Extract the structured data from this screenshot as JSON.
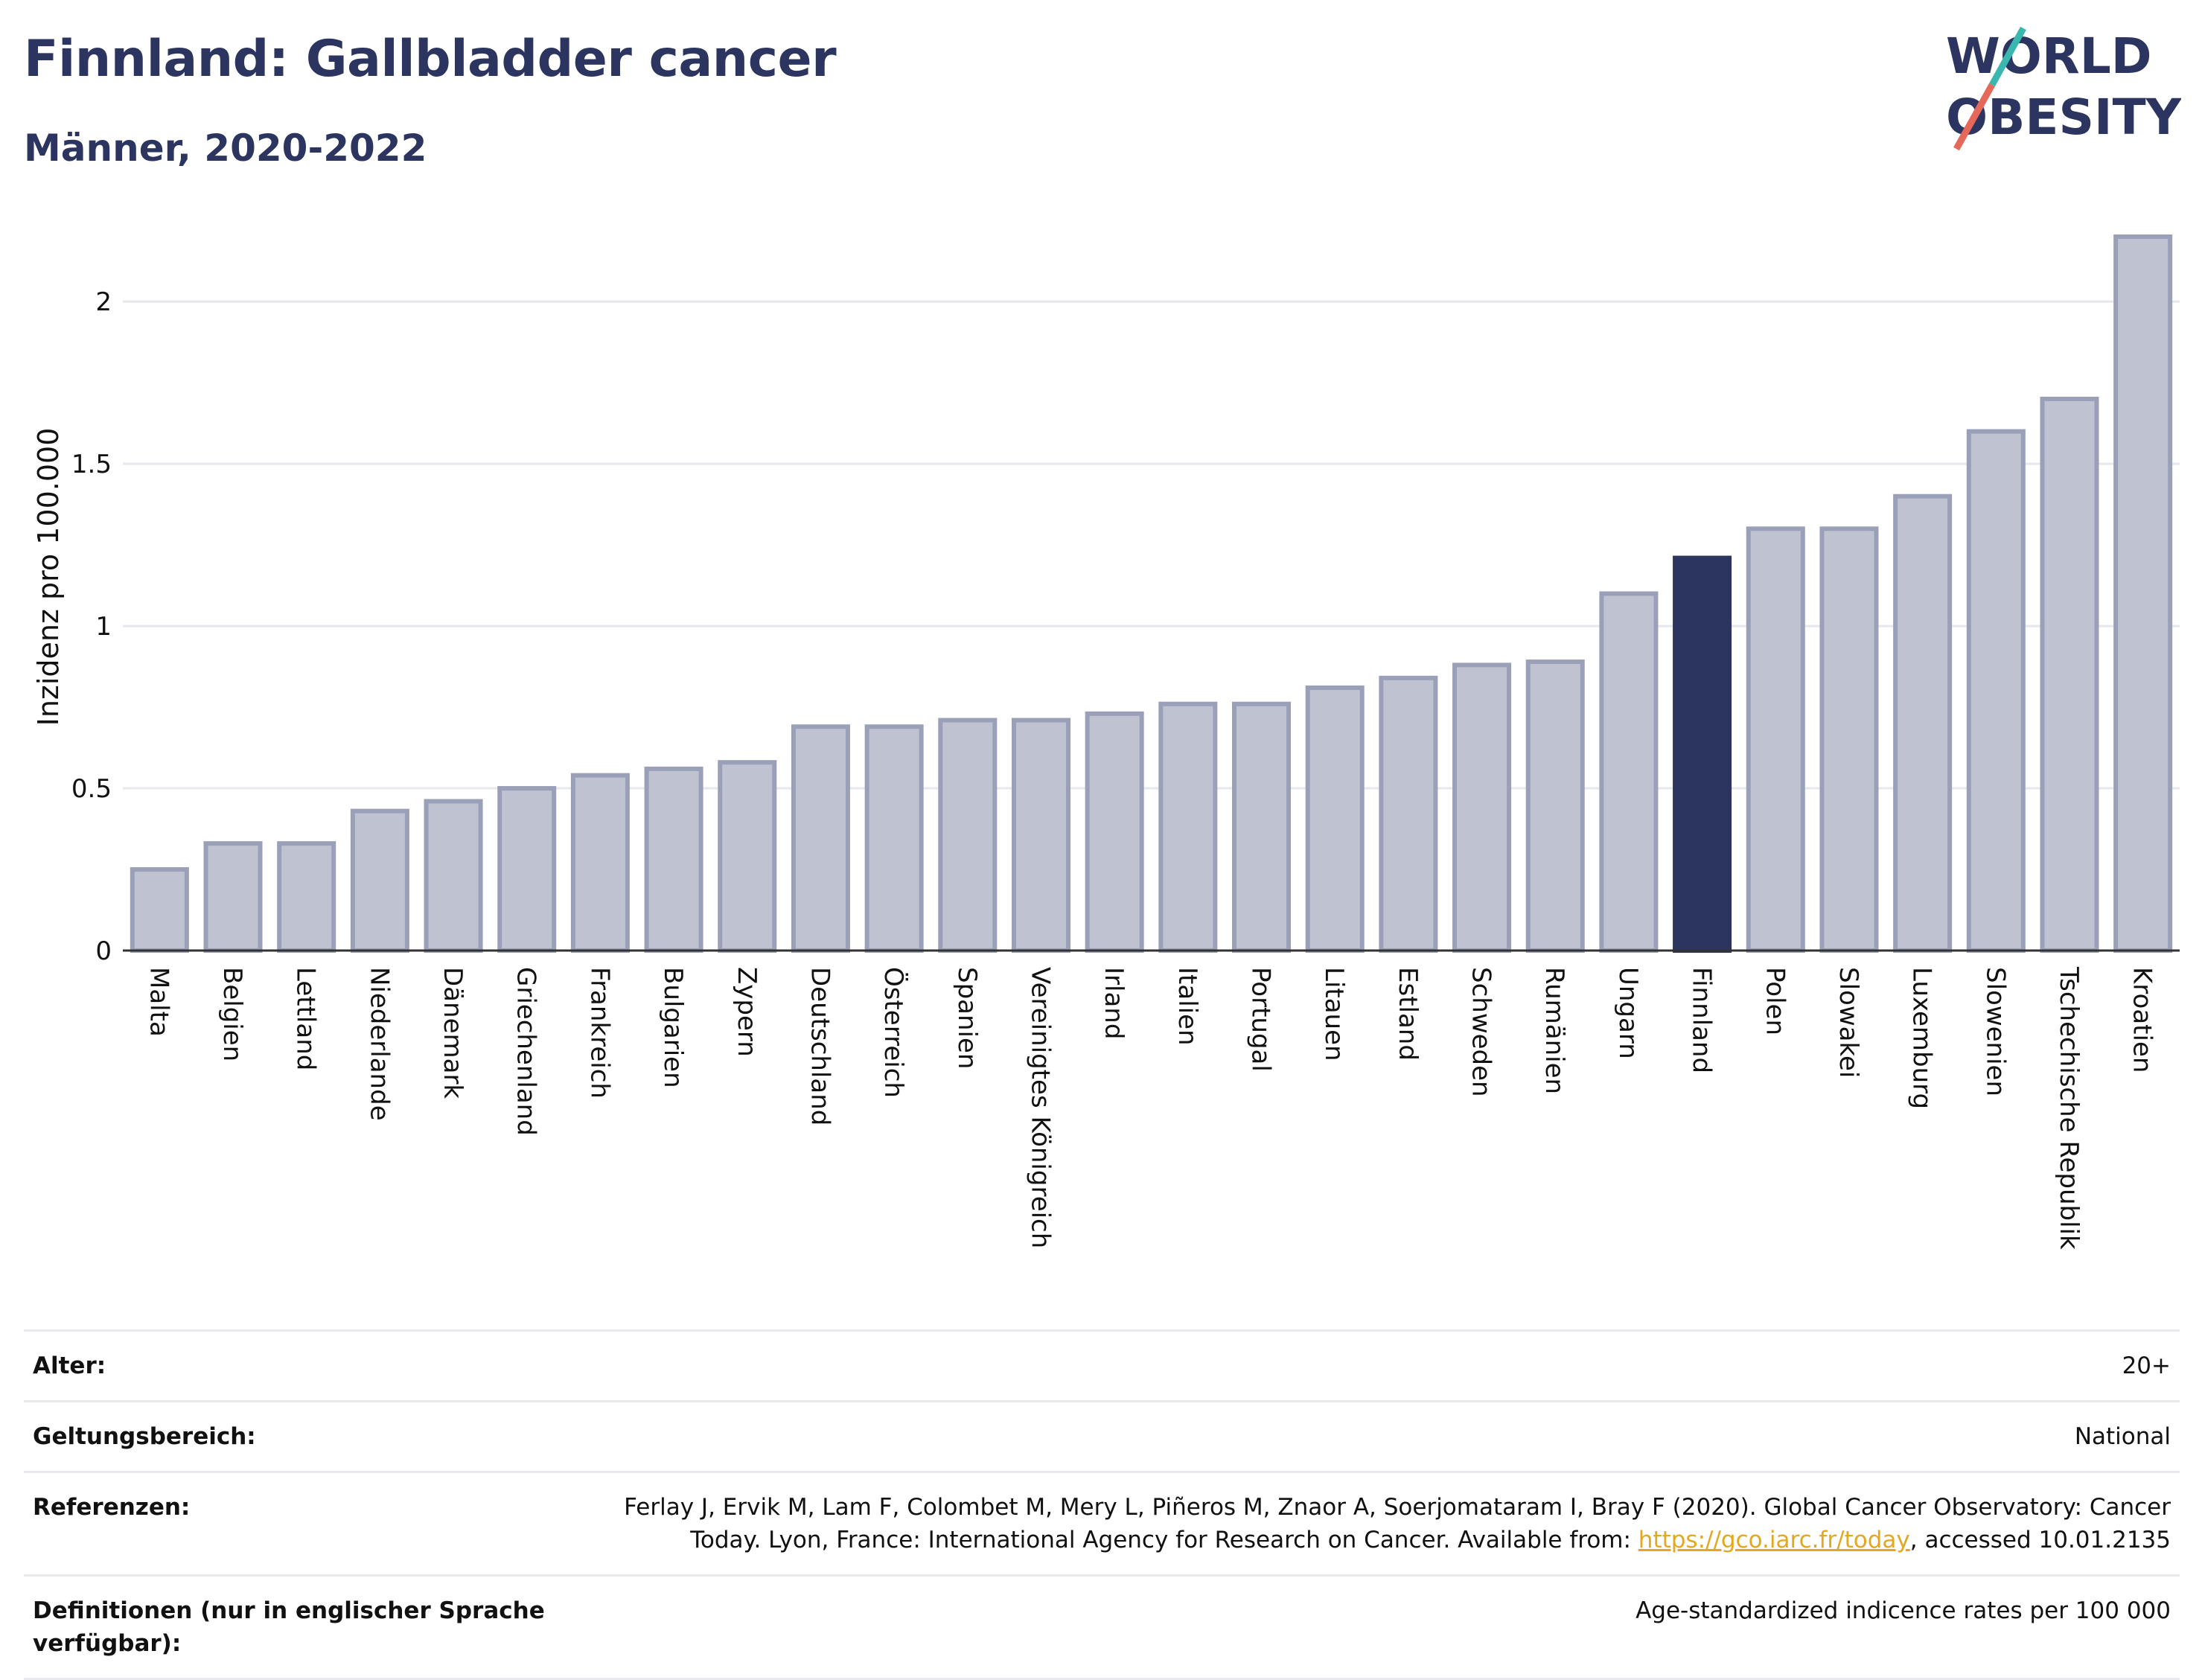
{
  "header": {
    "title": "Finnland: Gallbladder cancer",
    "subtitle": "Männer, 2020-2022"
  },
  "logo": {
    "line1": "WORLD",
    "line2": "OBESITY"
  },
  "colors": {
    "bar": "#bfc3d1",
    "bar_border": "#9aa0b8",
    "highlight": "#2b355f",
    "accent_line": "#e5685b",
    "accent_teal": "#3ab8b0"
  },
  "chart_data": {
    "type": "bar",
    "ylabel": "Inzidenz pro 100.000",
    "xlabel": "",
    "ylim": [
      0,
      2.2
    ],
    "yticks": [
      0,
      0.5,
      1,
      1.5,
      2
    ],
    "ytick_labels": [
      "0",
      "0.5",
      "1",
      "1.5",
      "2"
    ],
    "grid": true,
    "highlight": "Finnland",
    "categories": [
      "Malta",
      "Belgien",
      "Lettland",
      "Niederlande",
      "Dänemark",
      "Griechenland",
      "Frankreich",
      "Bulgarien",
      "Zypern",
      "Deutschland",
      "Österreich",
      "Spanien",
      "Vereinigtes Königreich",
      "Irland",
      "Italien",
      "Portugal",
      "Litauen",
      "Estland",
      "Schweden",
      "Rumänien",
      "Ungarn",
      "Finnland",
      "Polen",
      "Slowakei",
      "Luxemburg",
      "Slowenien",
      "Tschechische Republik",
      "Kroatien"
    ],
    "values": [
      0.25,
      0.33,
      0.33,
      0.43,
      0.46,
      0.5,
      0.54,
      0.56,
      0.58,
      0.69,
      0.69,
      0.71,
      0.71,
      0.73,
      0.76,
      0.76,
      0.81,
      0.84,
      0.88,
      0.89,
      1.1,
      1.21,
      1.3,
      1.3,
      1.4,
      1.6,
      1.7,
      2.2
    ]
  },
  "meta": {
    "age_label": "Alter:",
    "age_value": "20+",
    "scope_label": "Geltungsbereich:",
    "scope_value": "National",
    "ref_label": "Referenzen:",
    "ref_text_1": "Ferlay J, Ervik M, Lam F, Colombet M, Mery L, Piñeros M, Znaor A, Soerjomataram I, Bray F (2020). Global Cancer Observatory: Cancer Today. Lyon, France: International Agency for Research on Cancer. Available from: ",
    "ref_link": "https://gco.iarc.fr/today",
    "ref_text_2": ", accessed 10.01.2135",
    "def_label": "Definitionen (nur in englischer Sprache verfügbar):",
    "def_value": "Age-standardized indicence rates per 100 000"
  }
}
